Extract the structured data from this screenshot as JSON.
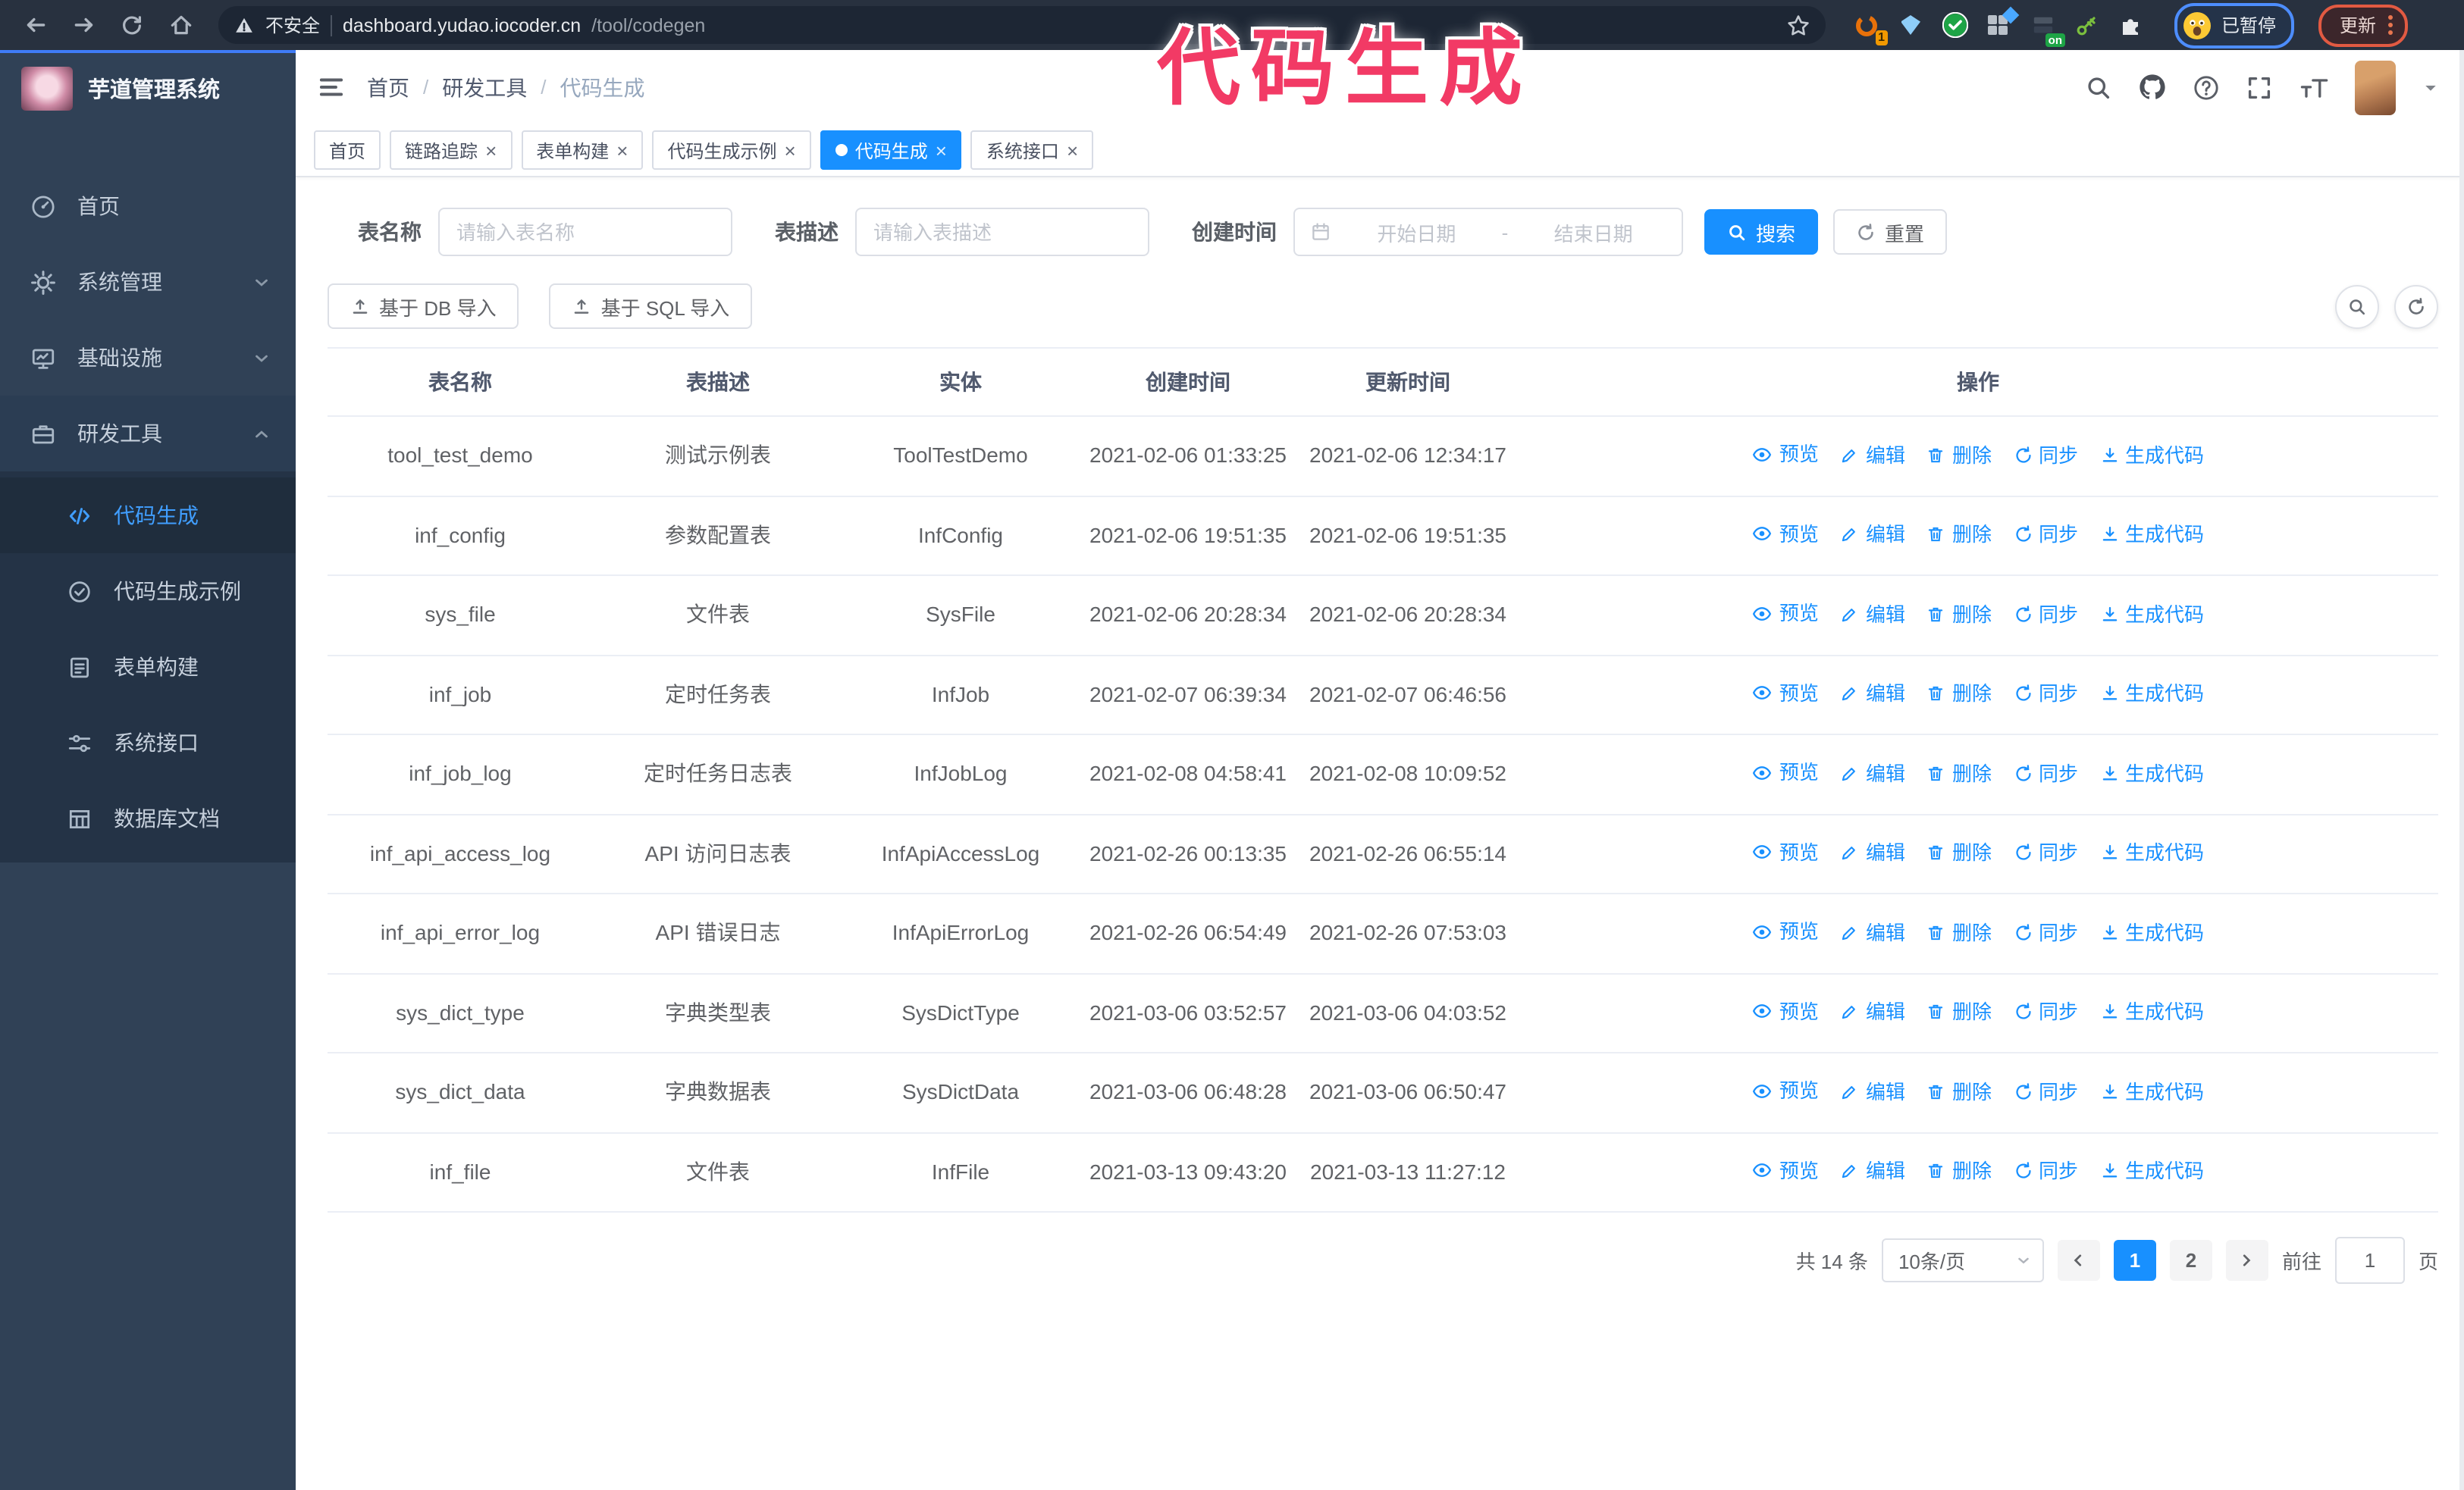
{
  "watermark": {
    "text": "代码生成"
  },
  "browser": {
    "security_label": "不安全",
    "url_host": "dashboard.yudao.iocoder.cn",
    "url_path": "/tool/codegen",
    "extension_badges": {
      "count": "1",
      "power": "on"
    },
    "profile": {
      "status": "已暂停"
    },
    "update_button": {
      "label": "更新"
    }
  },
  "sidebar": {
    "title": "芋道管理系统",
    "menu": [
      {
        "label": "首页",
        "icon": "dashboard-icon",
        "chevron": null,
        "expanded": false
      },
      {
        "label": "系统管理",
        "icon": "gear-icon",
        "chevron": "down",
        "expanded": false
      },
      {
        "label": "基础设施",
        "icon": "monitor-icon",
        "chevron": "down",
        "expanded": false
      },
      {
        "label": "研发工具",
        "icon": "toolbox-icon",
        "chevron": "up",
        "expanded": true
      }
    ],
    "submenu": [
      {
        "label": "代码生成",
        "icon": "code-icon",
        "active": true
      },
      {
        "label": "代码生成示例",
        "icon": "badge-check-icon",
        "active": false
      },
      {
        "label": "表单构建",
        "icon": "form-icon",
        "active": false
      },
      {
        "label": "系统接口",
        "icon": "sliders-icon",
        "active": false
      },
      {
        "label": "数据库文档",
        "icon": "grid-icon",
        "active": false
      }
    ]
  },
  "breadcrumb": {
    "items": [
      "首页",
      "研发工具",
      "代码生成"
    ],
    "separator": "/"
  },
  "tabs": [
    {
      "label": "首页",
      "closable": false,
      "active": false
    },
    {
      "label": "链路追踪",
      "closable": true,
      "active": false
    },
    {
      "label": "表单构建",
      "closable": true,
      "active": false
    },
    {
      "label": "代码生成示例",
      "closable": true,
      "active": false
    },
    {
      "label": "代码生成",
      "closable": true,
      "active": true
    },
    {
      "label": "系统接口",
      "closable": true,
      "active": false
    }
  ],
  "filters": {
    "table_name_label": "表名称",
    "table_name_placeholder": "请输入表名称",
    "table_desc_label": "表描述",
    "table_desc_placeholder": "请输入表描述",
    "create_time_label": "创建时间",
    "date_start_placeholder": "开始日期",
    "date_separator": "-",
    "date_end_placeholder": "结束日期",
    "search_label": "搜索",
    "reset_label": "重置"
  },
  "import_buttons": [
    {
      "label": "基于 DB 导入",
      "icon": "upload-icon"
    },
    {
      "label": "基于 SQL 导入",
      "icon": "upload-icon"
    }
  ],
  "table": {
    "columns": [
      "表名称",
      "表描述",
      "实体",
      "创建时间",
      "更新时间",
      "操作"
    ],
    "row_actions": [
      {
        "label": "预览",
        "icon": "eye-icon"
      },
      {
        "label": "编辑",
        "icon": "edit-icon"
      },
      {
        "label": "删除",
        "icon": "delete-icon"
      },
      {
        "label": "同步",
        "icon": "sync-icon"
      },
      {
        "label": "生成代码",
        "icon": "download-icon"
      }
    ],
    "rows": [
      {
        "name": "tool_test_demo",
        "desc": "测试示例表",
        "entity": "ToolTestDemo",
        "created": "2021-02-06 01:33:25",
        "updated": "2021-02-06 12:34:17"
      },
      {
        "name": "inf_config",
        "desc": "参数配置表",
        "entity": "InfConfig",
        "created": "2021-02-06 19:51:35",
        "updated": "2021-02-06 19:51:35"
      },
      {
        "name": "sys_file",
        "desc": "文件表",
        "entity": "SysFile",
        "created": "2021-02-06 20:28:34",
        "updated": "2021-02-06 20:28:34"
      },
      {
        "name": "inf_job",
        "desc": "定时任务表",
        "entity": "InfJob",
        "created": "2021-02-07 06:39:34",
        "updated": "2021-02-07 06:46:56"
      },
      {
        "name": "inf_job_log",
        "desc": "定时任务日志表",
        "entity": "InfJobLog",
        "created": "2021-02-08 04:58:41",
        "updated": "2021-02-08 10:09:52"
      },
      {
        "name": "inf_api_access_log",
        "desc": "API 访问日志表",
        "entity": "InfApiAccessLog",
        "created": "2021-02-26 00:13:35",
        "updated": "2021-02-26 06:55:14"
      },
      {
        "name": "inf_api_error_log",
        "desc": "API 错误日志",
        "entity": "InfApiErrorLog",
        "created": "2021-02-26 06:54:49",
        "updated": "2021-02-26 07:53:03"
      },
      {
        "name": "sys_dict_type",
        "desc": "字典类型表",
        "entity": "SysDictType",
        "created": "2021-03-06 03:52:57",
        "updated": "2021-03-06 04:03:52"
      },
      {
        "name": "sys_dict_data",
        "desc": "字典数据表",
        "entity": "SysDictData",
        "created": "2021-03-06 06:48:28",
        "updated": "2021-03-06 06:50:47"
      },
      {
        "name": "inf_file",
        "desc": "文件表",
        "entity": "InfFile",
        "created": "2021-03-13 09:43:20",
        "updated": "2021-03-13 11:27:12"
      }
    ]
  },
  "pagination": {
    "total": "共 14 条",
    "page_size": "10条/页",
    "pages": [
      "1",
      "2"
    ],
    "current": "1",
    "goto_label": "前往",
    "goto_value": "1",
    "unit": "页"
  },
  "colors": {
    "accent": "#1890ff",
    "sidebar": "#304156",
    "watermark_pink": "#f23a65"
  }
}
